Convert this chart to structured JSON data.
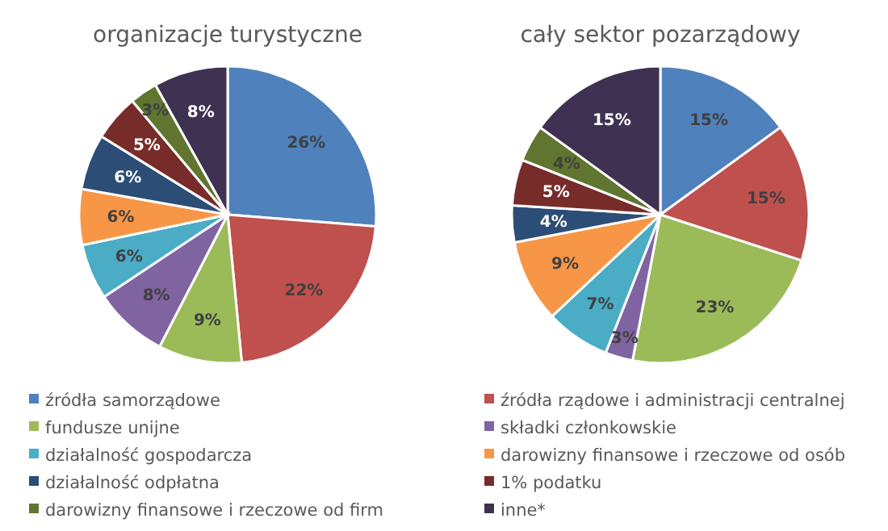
{
  "chart_data": [
    {
      "type": "pie",
      "title": "organizacje turystyczne",
      "categories": [
        "źródła samorządowe",
        "źródła rządowe i administracji centralnej",
        "fundusze unijne",
        "składki członkowskie",
        "działalność gospodarcza",
        "darowizny finansowe i rzeczowe od osób",
        "działalność odpłatna",
        "1% podatku",
        "darowizny finansowe i rzeczowe od firm",
        "inne*"
      ],
      "values": [
        26,
        22,
        9,
        8,
        6,
        6,
        6,
        5,
        3,
        8
      ],
      "colors": [
        "#4f81bd",
        "#c0504d",
        "#9bbb59",
        "#8064a2",
        "#4bacc6",
        "#f79646",
        "#2c4d75",
        "#772c2a",
        "#5f7530",
        "#3f3151"
      ],
      "value_labels": [
        "26%",
        "22%",
        "9%",
        "8%",
        "6%",
        "6%",
        "6%",
        "5%",
        "3%",
        "8%"
      ],
      "legend": "bottom"
    },
    {
      "type": "pie",
      "title": "cały sektor pozarządowy",
      "categories": [
        null,
        null,
        null,
        null,
        null,
        null,
        null,
        null,
        null,
        null
      ],
      "values": [
        15,
        15,
        23,
        3,
        7,
        9,
        4,
        5,
        4,
        15
      ],
      "colors": [
        "#4f81bd",
        "#c0504d",
        "#9bbb59",
        "#8064a2",
        "#4bacc6",
        "#f79646",
        "#2c4d75",
        "#772c2a",
        "#5f7530",
        "#3f3151"
      ],
      "value_labels": [
        "15%",
        "15%",
        "23%",
        "3%",
        "7%",
        "9%",
        "4%",
        "5%",
        "4%",
        "15%"
      ]
    }
  ]
}
